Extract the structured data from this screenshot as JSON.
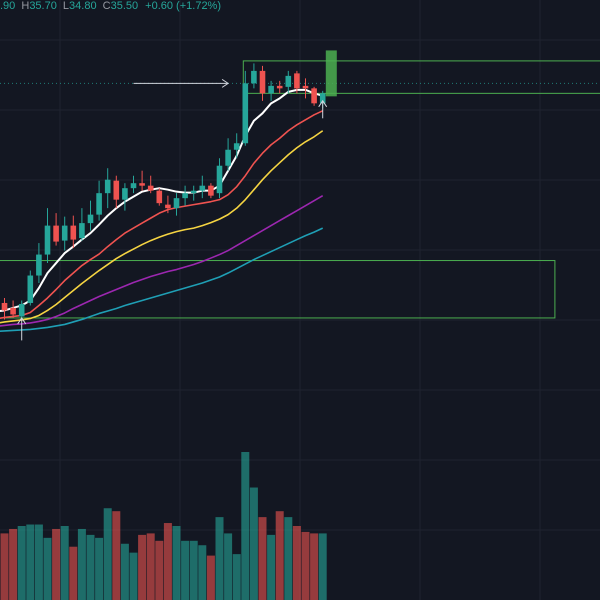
{
  "header": {
    "open_fragment": ".90",
    "h_label": "H",
    "high": "35.70",
    "l_label": "L",
    "low": "34.80",
    "c_label": "C",
    "close": "35.50",
    "change": "+0.60 (+1.72%)"
  },
  "colors": {
    "background": "#131722",
    "grid": "#1f2330",
    "up": "#26a69a",
    "down": "#ef5350",
    "last_candle": "#4caf50",
    "zone": "#4caf50",
    "header_text": "#26a69a",
    "header_label": "#9598a1",
    "arrow": "#d1d4dc",
    "ema_fast": "#ffffff",
    "ema_2": "#ef5350",
    "ema_3": "#f5d442",
    "ema_4": "#9c27b0",
    "ema_5": "#1f9fb5"
  },
  "chart_data": {
    "type": "candlestick",
    "price_range": [
      28.0,
      36.6
    ],
    "volume_range": [
      0,
      100
    ],
    "candles": [
      {
        "o": 30.65,
        "h": 30.75,
        "l": 30.32,
        "c": 30.5
      },
      {
        "o": 30.55,
        "h": 30.7,
        "l": 30.35,
        "c": 30.42
      },
      {
        "o": 30.38,
        "h": 30.7,
        "l": 30.35,
        "c": 30.63
      },
      {
        "o": 30.65,
        "h": 31.3,
        "l": 30.6,
        "c": 31.2
      },
      {
        "o": 31.2,
        "h": 31.85,
        "l": 31.05,
        "c": 31.62
      },
      {
        "o": 31.62,
        "h": 32.55,
        "l": 31.45,
        "c": 32.2
      },
      {
        "o": 32.2,
        "h": 32.45,
        "l": 31.8,
        "c": 31.88
      },
      {
        "o": 31.9,
        "h": 32.38,
        "l": 31.7,
        "c": 32.2
      },
      {
        "o": 32.2,
        "h": 32.4,
        "l": 31.75,
        "c": 31.92
      },
      {
        "o": 31.95,
        "h": 32.55,
        "l": 31.9,
        "c": 32.25
      },
      {
        "o": 32.25,
        "h": 32.7,
        "l": 32.1,
        "c": 32.42
      },
      {
        "o": 32.42,
        "h": 33.1,
        "l": 32.3,
        "c": 32.85
      },
      {
        "o": 32.85,
        "h": 33.35,
        "l": 32.55,
        "c": 33.12
      },
      {
        "o": 33.1,
        "h": 33.2,
        "l": 32.55,
        "c": 32.72
      },
      {
        "o": 32.72,
        "h": 33.05,
        "l": 32.5,
        "c": 32.95
      },
      {
        "o": 32.95,
        "h": 33.2,
        "l": 32.85,
        "c": 33.05
      },
      {
        "o": 33.05,
        "h": 33.3,
        "l": 32.9,
        "c": 33.0
      },
      {
        "o": 33.0,
        "h": 33.2,
        "l": 32.85,
        "c": 32.9
      },
      {
        "o": 32.9,
        "h": 32.95,
        "l": 32.6,
        "c": 32.65
      },
      {
        "o": 32.62,
        "h": 32.8,
        "l": 32.45,
        "c": 32.55
      },
      {
        "o": 32.55,
        "h": 32.85,
        "l": 32.4,
        "c": 32.75
      },
      {
        "o": 32.75,
        "h": 33.0,
        "l": 32.6,
        "c": 32.85
      },
      {
        "o": 32.85,
        "h": 33.0,
        "l": 32.7,
        "c": 32.9
      },
      {
        "o": 32.9,
        "h": 33.2,
        "l": 32.75,
        "c": 33.0
      },
      {
        "o": 33.0,
        "h": 33.05,
        "l": 32.75,
        "c": 32.8
      },
      {
        "o": 32.85,
        "h": 33.55,
        "l": 32.75,
        "c": 33.4
      },
      {
        "o": 33.4,
        "h": 33.95,
        "l": 33.3,
        "c": 33.72
      },
      {
        "o": 33.72,
        "h": 34.05,
        "l": 33.55,
        "c": 33.85
      },
      {
        "o": 33.85,
        "h": 35.3,
        "l": 33.8,
        "c": 35.05
      },
      {
        "o": 35.05,
        "h": 35.45,
        "l": 34.95,
        "c": 35.3
      },
      {
        "o": 35.3,
        "h": 35.4,
        "l": 34.7,
        "c": 34.85
      },
      {
        "o": 34.85,
        "h": 35.1,
        "l": 34.7,
        "c": 35.0
      },
      {
        "o": 35.0,
        "h": 35.1,
        "l": 34.85,
        "c": 34.95
      },
      {
        "o": 34.98,
        "h": 35.3,
        "l": 34.85,
        "c": 35.2
      },
      {
        "o": 35.25,
        "h": 35.3,
        "l": 34.85,
        "c": 34.95
      },
      {
        "o": 35.0,
        "h": 35.15,
        "l": 34.75,
        "c": 34.95
      },
      {
        "o": 34.95,
        "h": 34.98,
        "l": 34.6,
        "c": 34.65
      },
      {
        "o": 34.65,
        "h": 34.9,
        "l": 34.55,
        "c": 34.85
      }
    ],
    "last_candle": {
      "o": 34.9,
      "h": 35.7,
      "l": 34.8,
      "c": 35.5
    },
    "volume": [
      45,
      48,
      50,
      51,
      51,
      42,
      48,
      50,
      36,
      48,
      44,
      42,
      62,
      60,
      38,
      32,
      44,
      45,
      40,
      52,
      50,
      40,
      40,
      37,
      30,
      56,
      45,
      31,
      100,
      76,
      56,
      44,
      60,
      56,
      50,
      46,
      45,
      45
    ],
    "ema": [
      {
        "color_key": "ema_fast",
        "values": [
          30.48,
          30.5,
          30.55,
          30.6,
          30.7,
          30.95,
          31.25,
          31.45,
          31.65,
          31.78,
          31.92,
          32.05,
          32.22,
          32.4,
          32.55,
          32.68,
          32.78,
          32.88,
          32.92,
          32.95,
          32.92,
          32.88,
          32.86,
          32.86,
          32.9,
          32.9,
          33.0,
          33.3,
          33.6,
          34.0,
          34.3,
          34.45,
          34.65,
          34.75,
          34.88,
          34.92,
          34.92,
          34.85,
          34.8
        ]
      },
      {
        "color_key": "ema_2",
        "values": [
          30.33,
          30.36,
          30.38,
          30.4,
          30.46,
          30.6,
          30.75,
          30.92,
          31.1,
          31.25,
          31.4,
          31.52,
          31.63,
          31.78,
          31.92,
          32.05,
          32.15,
          32.25,
          32.35,
          32.45,
          32.52,
          32.56,
          32.59,
          32.62,
          32.65,
          32.68,
          32.72,
          32.82,
          32.98,
          33.2,
          33.45,
          33.65,
          33.82,
          33.95,
          34.1,
          34.22,
          34.32,
          34.42,
          34.5
        ]
      },
      {
        "color_key": "ema_3",
        "values": [
          30.24,
          30.27,
          30.29,
          30.31,
          30.34,
          30.4,
          30.5,
          30.62,
          30.76,
          30.9,
          31.04,
          31.17,
          31.3,
          31.42,
          31.54,
          31.64,
          31.73,
          31.82,
          31.9,
          31.97,
          32.03,
          32.08,
          32.12,
          32.15,
          32.2,
          32.26,
          32.33,
          32.42,
          32.55,
          32.72,
          32.92,
          33.12,
          33.3,
          33.46,
          33.62,
          33.76,
          33.88,
          33.98,
          34.1
        ]
      },
      {
        "color_key": "ema_4",
        "values": [
          30.18,
          30.2,
          30.22,
          30.23,
          30.25,
          30.28,
          30.32,
          30.38,
          30.45,
          30.54,
          30.62,
          30.7,
          30.78,
          30.85,
          30.92,
          30.99,
          31.06,
          31.12,
          31.18,
          31.23,
          31.28,
          31.32,
          31.37,
          31.42,
          31.48,
          31.55,
          31.62,
          31.7,
          31.8,
          31.9,
          32.0,
          32.1,
          32.2,
          32.3,
          32.4,
          32.5,
          32.6,
          32.7,
          32.8
        ]
      },
      {
        "color_key": "ema_5",
        "values": [
          30.08,
          30.09,
          30.1,
          30.11,
          30.12,
          30.14,
          30.16,
          30.19,
          30.22,
          30.27,
          30.32,
          30.38,
          30.44,
          30.49,
          30.54,
          30.6,
          30.65,
          30.7,
          30.75,
          30.8,
          30.85,
          30.9,
          30.95,
          31.0,
          31.05,
          31.11,
          31.17,
          31.25,
          31.34,
          31.43,
          31.52,
          31.6,
          31.68,
          31.76,
          31.84,
          31.92,
          32.0,
          32.07,
          32.15
        ]
      }
    ],
    "zones": [
      {
        "name": "resistance-zone",
        "top": 35.5,
        "bottom": 34.85,
        "from_index": 28,
        "to_end": true
      },
      {
        "name": "support-zone",
        "top": 31.5,
        "bottom": 30.35,
        "from_index": -1,
        "to_index": 64
      }
    ],
    "reference_line": 35.05,
    "arrows": [
      {
        "name": "breakout-arrow",
        "price": 35.05,
        "from_index": 15,
        "to_index": 26,
        "direction": "right"
      },
      {
        "name": "pullback-arrow-right",
        "index": 37,
        "from_price": 34.35,
        "to_price": 34.7,
        "direction": "up"
      },
      {
        "name": "pullback-arrow-left",
        "index": 2,
        "from_price": 29.9,
        "to_price": 30.35,
        "direction": "up"
      }
    ]
  }
}
